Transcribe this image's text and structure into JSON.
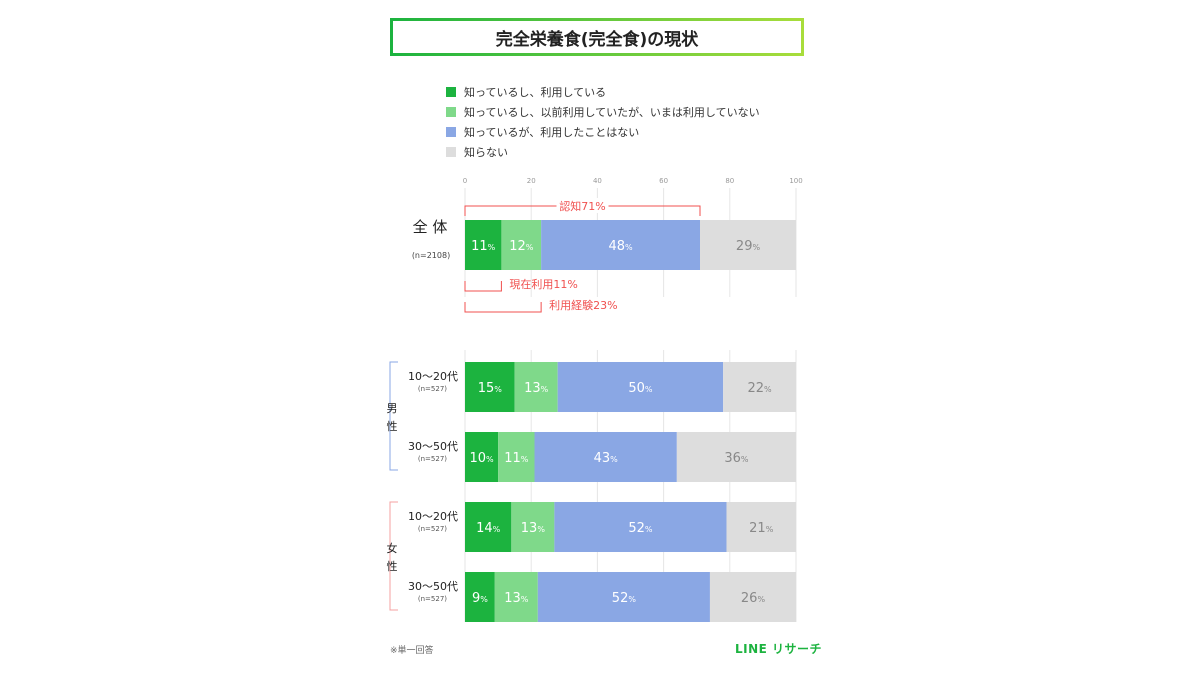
{
  "title": "完全栄養食(完全食)の現状",
  "legend": [
    {
      "label": "知っているし、利用している",
      "color": "#1cb33f"
    },
    {
      "label": "知っているし、以前利用していたが、いまは利用していない",
      "color": "#7fd98a"
    },
    {
      "label": "知っているが、利用したことはない",
      "color": "#8aa7e4"
    },
    {
      "label": "知らない",
      "color": "#dddddd"
    }
  ],
  "chart_data": {
    "type": "bar",
    "orientation": "horizontal-stacked-100",
    "xlim": [
      0,
      100
    ],
    "xticks": [
      "0",
      "20",
      "40",
      "60",
      "80",
      "100"
    ],
    "series_colors": [
      "#1cb33f",
      "#7fd98a",
      "#8aa7e4",
      "#dddddd"
    ],
    "value_unit": "%",
    "rows": [
      {
        "label": "全 体",
        "n": "(n=2108)",
        "values": [
          11,
          12,
          48,
          29
        ]
      },
      {
        "label": "10〜20代",
        "n": "(n=527)",
        "group": "男性",
        "values": [
          15,
          13,
          50,
          22
        ]
      },
      {
        "label": "30〜50代",
        "n": "(n=527)",
        "group": "男性",
        "values": [
          10,
          11,
          43,
          36
        ]
      },
      {
        "label": "10〜20代",
        "n": "(n=527)",
        "group": "女性",
        "values": [
          14,
          13,
          52,
          21
        ]
      },
      {
        "label": "30〜50代",
        "n": "(n=527)",
        "group": "女性",
        "values": [
          9,
          13,
          52,
          26
        ]
      }
    ],
    "groups": [
      {
        "name": "男性",
        "chars": [
          "男",
          "性"
        ],
        "color": "#8aa7e4"
      },
      {
        "name": "女性",
        "chars": [
          "女",
          "性"
        ],
        "color": "#f4a0a0"
      }
    ],
    "annotations": [
      {
        "label": "認知71%",
        "from": 0,
        "to": 71,
        "position": "above",
        "color": "#f0504f"
      },
      {
        "label": "現在利用11%",
        "from": 0,
        "to": 11,
        "position": "below",
        "color": "#f0504f"
      },
      {
        "label": "利用経験23%",
        "from": 0,
        "to": 23,
        "position": "below",
        "color": "#f0504f"
      }
    ]
  },
  "footnote": "※単一回答",
  "brand": "LINE リサーチ"
}
